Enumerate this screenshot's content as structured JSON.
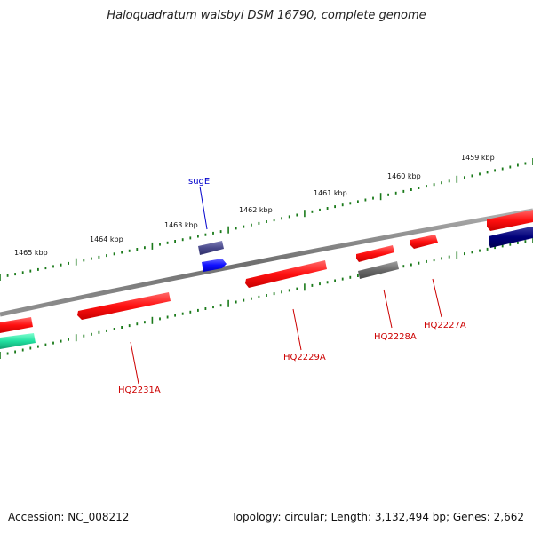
{
  "title": "Haloquadratum walsbyi DSM 16790, complete genome",
  "footer": {
    "accession": "Accession: NC_008212",
    "topology": "Topology: circular; Length: 3,132,494 bp; Genes: 2,662"
  },
  "scale_ticks": [
    "1459 kbp",
    "1460 kbp",
    "1461 kbp",
    "1462 kbp",
    "1463 kbp",
    "1464 kbp",
    "1465 kbp"
  ],
  "gene_labels": {
    "sugE": "sugE",
    "hq2227a": "HQ2227A",
    "hq2228a": "HQ2228A",
    "hq2229a": "HQ2229A",
    "hq2231a": "HQ2231A"
  },
  "colors": {
    "backbone": "#808080",
    "tick": "#1a7a1a",
    "gene_red": "#ff2020",
    "gene_navy": "#00007a",
    "gene_blue": "#1010ff",
    "gene_slate": "#4a4a8c",
    "gene_gray": "#6a6a6a",
    "gene_teal": "#20e0a0",
    "label_red": "#cc0000",
    "label_blue": "#0000cc"
  }
}
